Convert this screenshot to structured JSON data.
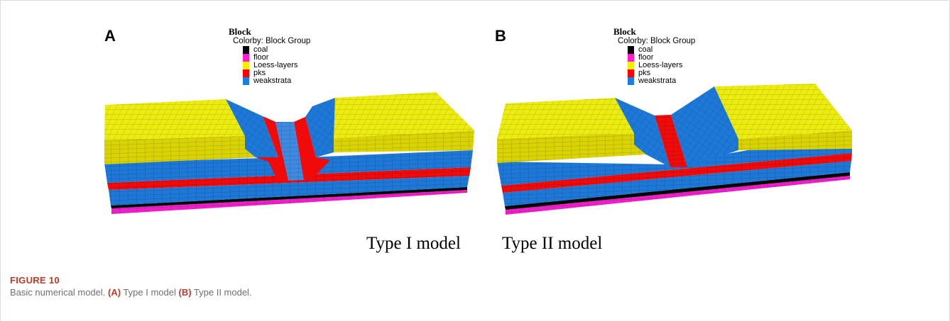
{
  "figure": {
    "label": "FIGURE 10",
    "caption": {
      "lead": "Basic numerical model.",
      "a_tag": "(A)",
      "a_text": " Type I model ",
      "b_tag": "(B)",
      "b_text": " Type II model."
    }
  },
  "panels": [
    {
      "letter": "A",
      "model_label": "Type I model",
      "legend": {
        "title": "Block",
        "colorby": "Colorby: Block Group",
        "items": [
          {
            "label": "coal",
            "color": "#000000"
          },
          {
            "label": "floor",
            "color": "#ff1ecb"
          },
          {
            "label": "Loess-layers",
            "color": "#f2f000"
          },
          {
            "label": "pks",
            "color": "#ff0000"
          },
          {
            "label": "weakstrata",
            "color": "#1b7fe2"
          }
        ]
      }
    },
    {
      "letter": "B",
      "model_label": "Type II model",
      "legend": {
        "title": "Block",
        "colorby": "Colorby: Block Group",
        "items": [
          {
            "label": "coal",
            "color": "#000000"
          },
          {
            "label": "floor",
            "color": "#ff1ecb"
          },
          {
            "label": "Loess-layers",
            "color": "#f2f000"
          },
          {
            "label": "pks",
            "color": "#ff0000"
          },
          {
            "label": "weakstrata",
            "color": "#1b7fe2"
          }
        ]
      }
    }
  ],
  "colors": {
    "loess": "#d9d300",
    "loess_top": "#ecec10",
    "weak": "#1d78d8",
    "weak_dark": "#1564bc",
    "pks": "#f00a0a",
    "coal": "#000000",
    "floor": "#f01ec8",
    "caption_accent": "#c0392b"
  }
}
